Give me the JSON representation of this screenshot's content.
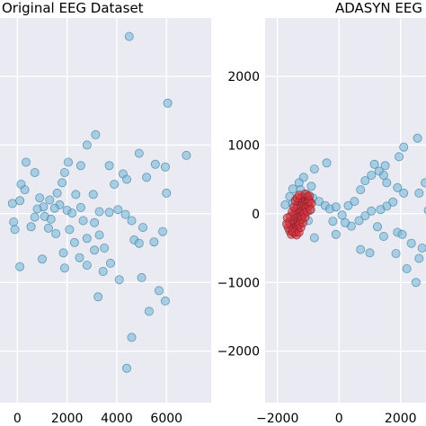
{
  "chart_data": [
    {
      "type": "scatter",
      "title": "Original EEG Dataset",
      "xlabel": "",
      "ylabel": "",
      "xlim": [
        -700,
        7800
      ],
      "ylim": [
        -2750,
        2850
      ],
      "xticks": [
        0,
        2000,
        4000,
        6000
      ],
      "xtick_labels": [
        "0",
        "2000",
        "4000",
        "6000"
      ],
      "yticks": [
        -2000,
        -1000,
        0,
        1000,
        2000
      ],
      "grid": true,
      "background": "#eaeaf2",
      "series": [
        {
          "color": "#7bb8d6",
          "edgecolor": "#2f7ea3",
          "points": [
            [
              4500,
              2580
            ],
            [
              6050,
              1610
            ],
            [
              3150,
              1150
            ],
            [
              2800,
              1000
            ],
            [
              350,
              750
            ],
            [
              2050,
              750
            ],
            [
              1900,
              600
            ],
            [
              700,
              600
            ],
            [
              4900,
              880
            ],
            [
              2550,
              700
            ],
            [
              3700,
              700
            ],
            [
              6800,
              850
            ],
            [
              5550,
              720
            ],
            [
              5950,
              680
            ],
            [
              4250,
              580
            ],
            [
              4400,
              500
            ],
            [
              5200,
              530
            ],
            [
              3900,
              430
            ],
            [
              1800,
              450
            ],
            [
              150,
              430
            ],
            [
              300,
              350
            ],
            [
              1600,
              300
            ],
            [
              900,
              230
            ],
            [
              1300,
              200
            ],
            [
              1700,
              130
            ],
            [
              100,
              190
            ],
            [
              -200,
              150
            ],
            [
              3050,
              280
            ],
            [
              2350,
              280
            ],
            [
              1050,
              100
            ],
            [
              1500,
              80
            ],
            [
              800,
              70
            ],
            [
              2550,
              90
            ],
            [
              2000,
              50
            ],
            [
              4050,
              60
            ],
            [
              3700,
              20
            ],
            [
              4350,
              -10
            ],
            [
              3300,
              30
            ],
            [
              1100,
              -40
            ],
            [
              2200,
              10
            ],
            [
              700,
              -50
            ],
            [
              1350,
              -80
            ],
            [
              -150,
              -120
            ],
            [
              2650,
              -100
            ],
            [
              3100,
              -130
            ],
            [
              1250,
              -210
            ],
            [
              -100,
              -230
            ],
            [
              550,
              -190
            ],
            [
              4600,
              -100
            ],
            [
              5050,
              -200
            ],
            [
              5850,
              -260
            ],
            [
              3300,
              -310
            ],
            [
              1550,
              -290
            ],
            [
              2800,
              -360
            ],
            [
              4700,
              -380
            ],
            [
              4900,
              -430
            ],
            [
              5500,
              -410
            ],
            [
              3100,
              -530
            ],
            [
              1850,
              -570
            ],
            [
              2500,
              -640
            ],
            [
              3750,
              -720
            ],
            [
              2800,
              -750
            ],
            [
              1000,
              -660
            ],
            [
              2300,
              -420
            ],
            [
              2100,
              -230
            ],
            [
              100,
              -770
            ],
            [
              1900,
              -790
            ],
            [
              3450,
              -840
            ],
            [
              5000,
              -930
            ],
            [
              4100,
              -960
            ],
            [
              5700,
              -1120
            ],
            [
              3250,
              -1210
            ],
            [
              5950,
              -1270
            ],
            [
              5300,
              -1420
            ],
            [
              4600,
              -1800
            ],
            [
              4400,
              -2250
            ],
            [
              6000,
              300
            ],
            [
              3500,
              -500
            ]
          ]
        }
      ]
    },
    {
      "type": "scatter",
      "title": "ADASYN EEG",
      "xlabel": "",
      "ylabel": "",
      "xlim": [
        -2400,
        3000
      ],
      "ylim": [
        -2750,
        2850
      ],
      "xticks": [
        -2000,
        0,
        2000
      ],
      "xtick_labels": [
        "−2000",
        "0",
        "2000"
      ],
      "yticks": [
        -2000,
        -1000,
        0,
        1000,
        2000
      ],
      "ytick_labels": [
        "−2000",
        "−1000",
        "0",
        "1000",
        "2000"
      ],
      "grid": true,
      "background": "#eaeaf2",
      "series": [
        {
          "color": "#7bb8d6",
          "edgecolor": "#2f7ea3",
          "points": [
            [
              2550,
              1100
            ],
            [
              2100,
              970
            ],
            [
              1950,
              830
            ],
            [
              1500,
              700
            ],
            [
              1150,
              720
            ],
            [
              -400,
              740
            ],
            [
              -800,
              650
            ],
            [
              -1150,
              530
            ],
            [
              -1300,
              450
            ],
            [
              -1500,
              360
            ],
            [
              -1600,
              250
            ],
            [
              -1750,
              130
            ],
            [
              -1500,
              150
            ],
            [
              -1300,
              200
            ],
            [
              -1250,
              350
            ],
            [
              -900,
              400
            ],
            [
              -1050,
              280
            ],
            [
              -850,
              230
            ],
            [
              -650,
              180
            ],
            [
              -450,
              120
            ],
            [
              -300,
              70
            ],
            [
              -100,
              100
            ],
            [
              100,
              -20
            ],
            [
              300,
              120
            ],
            [
              500,
              180
            ],
            [
              700,
              350
            ],
            [
              850,
              480
            ],
            [
              1050,
              560
            ],
            [
              1300,
              620
            ],
            [
              1450,
              560
            ],
            [
              1550,
              450
            ],
            [
              1900,
              380
            ],
            [
              2100,
              300
            ],
            [
              1750,
              170
            ],
            [
              1550,
              110
            ],
            [
              1350,
              60
            ],
            [
              1050,
              40
            ],
            [
              850,
              -30
            ],
            [
              650,
              -100
            ],
            [
              400,
              -180
            ],
            [
              200,
              -130
            ],
            [
              -100,
              -300
            ],
            [
              -200,
              -110
            ],
            [
              -800,
              -350
            ],
            [
              -1000,
              -100
            ],
            [
              -1400,
              -20
            ],
            [
              -1550,
              -100
            ],
            [
              1250,
              -190
            ],
            [
              1900,
              -270
            ],
            [
              2050,
              -300
            ],
            [
              1450,
              -330
            ],
            [
              700,
              -520
            ],
            [
              1000,
              -570
            ],
            [
              2350,
              -430
            ],
            [
              1850,
              -580
            ],
            [
              2600,
              -650
            ],
            [
              2200,
              -800
            ],
            [
              2500,
              -1000
            ],
            [
              2700,
              -500
            ],
            [
              2900,
              50
            ],
            [
              2800,
              450
            ],
            [
              2600,
              300
            ],
            [
              -950,
              50
            ],
            [
              -1150,
              120
            ]
          ]
        },
        {
          "color": "#d9333f",
          "edgecolor": "#7a1e26",
          "points": [
            [
              -1600,
              -250
            ],
            [
              -1550,
              -180
            ],
            [
              -1500,
              -90
            ],
            [
              -1450,
              0
            ],
            [
              -1400,
              60
            ],
            [
              -1350,
              120
            ],
            [
              -1300,
              180
            ],
            [
              -1250,
              230
            ],
            [
              -1550,
              -300
            ],
            [
              -1480,
              -220
            ],
            [
              -1420,
              -140
            ],
            [
              -1360,
              -60
            ],
            [
              -1300,
              20
            ],
            [
              -1240,
              100
            ],
            [
              -1180,
              170
            ],
            [
              -1120,
              240
            ],
            [
              -1450,
              -280
            ],
            [
              -1380,
              -200
            ],
            [
              -1320,
              -120
            ],
            [
              -1260,
              -40
            ],
            [
              -1200,
              40
            ],
            [
              -1140,
              120
            ],
            [
              -1080,
              190
            ],
            [
              -1020,
              250
            ],
            [
              -1400,
              -260
            ],
            [
              -1330,
              -180
            ],
            [
              -1260,
              -100
            ],
            [
              -1190,
              -20
            ],
            [
              -1120,
              60
            ],
            [
              -1060,
              140
            ],
            [
              -1000,
              210
            ],
            [
              -1350,
              -230
            ],
            [
              -1280,
              -150
            ],
            [
              -1210,
              -70
            ],
            [
              -1140,
              10
            ],
            [
              -1070,
              90
            ],
            [
              -1010,
              170
            ],
            [
              -1650,
              -200
            ],
            [
              -1620,
              -120
            ],
            [
              -1580,
              -40
            ],
            [
              -1520,
              30
            ],
            [
              -1460,
              100
            ],
            [
              -1500,
              -260
            ],
            [
              -1380,
              -310
            ],
            [
              -1300,
              -270
            ],
            [
              -1240,
              -200
            ],
            [
              -1170,
              -130
            ],
            [
              -1100,
              -50
            ],
            [
              -1040,
              30
            ],
            [
              -980,
              110
            ],
            [
              -950,
              180
            ],
            [
              -1700,
              -150
            ],
            [
              -1680,
              -60
            ],
            [
              -1420,
              190
            ],
            [
              -1360,
              230
            ],
            [
              -1290,
              270
            ],
            [
              -1100,
              290
            ],
            [
              -960,
              260
            ],
            [
              -900,
              150
            ],
            [
              -920,
              60
            ]
          ]
        }
      ]
    }
  ]
}
